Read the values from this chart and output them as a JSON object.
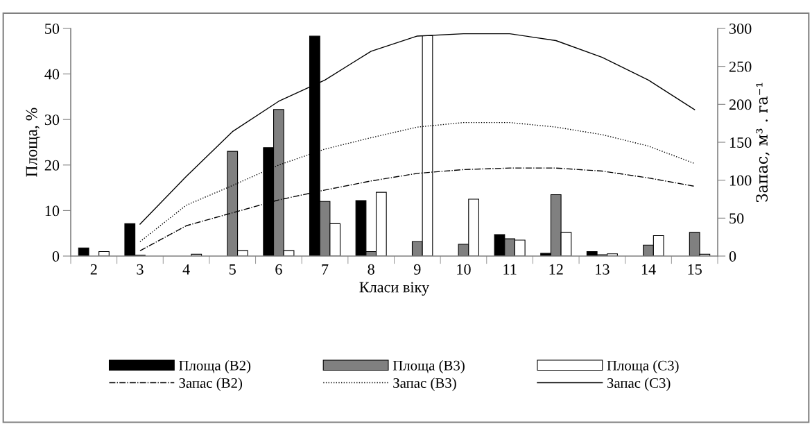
{
  "chart_data": {
    "type": "bar",
    "xlabel": "Класи віку",
    "ylabel": "Площа, %",
    "y2label": "Запас, м³ . га⁻¹",
    "categories": [
      "2",
      "3",
      "4",
      "5",
      "6",
      "7",
      "8",
      "9",
      "10",
      "11",
      "12",
      "13",
      "14",
      "15"
    ],
    "ylim": [
      0,
      50
    ],
    "yticks": [
      0,
      10,
      20,
      30,
      40,
      50
    ],
    "y2lim": [
      0,
      300
    ],
    "y2ticks": [
      0,
      50,
      100,
      150,
      200,
      250,
      300
    ],
    "grid": false,
    "legend": "bottom",
    "series": [
      {
        "name": "Площа (В2)",
        "color": "#000000",
        "values": [
          1.8,
          7.1,
          null,
          null,
          23.8,
          48.3,
          12.2,
          null,
          null,
          4.7,
          0.6,
          1.0,
          null,
          null
        ]
      },
      {
        "name": "Площа (В3)",
        "color": "#808080",
        "values": [
          null,
          0.2,
          null,
          23,
          32.2,
          12,
          1,
          3.2,
          2.6,
          3.8,
          13.5,
          0.3,
          2.4,
          5.2
        ]
      },
      {
        "name": "Площа (С3)",
        "color": "#ffffff",
        "values": [
          1,
          null,
          0.4,
          1.2,
          1.2,
          7.1,
          14,
          48.4,
          12.5,
          3.5,
          5.2,
          0.5,
          4.5,
          0.4
        ]
      },
      {
        "name": "Запас (В2)",
        "type": "line",
        "axis": "y2",
        "line_style": "dashdot",
        "color": "#000000",
        "values": [
          null,
          7,
          40,
          57,
          74,
          87,
          99,
          109,
          114,
          116,
          116,
          112,
          103,
          92
        ]
      },
      {
        "name": "Запас (В3)",
        "type": "line",
        "axis": "y2",
        "line_style": "dotted",
        "color": "#000000",
        "values": [
          null,
          19,
          67,
          93,
          120,
          141,
          156,
          170,
          176,
          176,
          170,
          160,
          145,
          122
        ]
      },
      {
        "name": "Запас (С3)",
        "type": "line",
        "axis": "y2",
        "line_style": "solid",
        "color": "#000000",
        "values": [
          null,
          42,
          105,
          164,
          204,
          232,
          270,
          290,
          293,
          293,
          284,
          262,
          232,
          193
        ]
      }
    ]
  }
}
